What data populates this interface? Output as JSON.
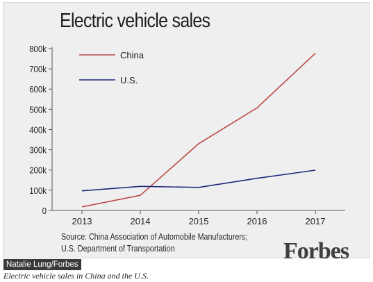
{
  "chart_data": {
    "type": "line",
    "title": "Electric vehicle sales",
    "x": [
      "2013",
      "2014",
      "2015",
      "2016",
      "2017"
    ],
    "ylim": [
      0,
      800000
    ],
    "yticks": [
      0,
      100000,
      200000,
      300000,
      400000,
      500000,
      600000,
      700000,
      800000
    ],
    "ytick_labels": [
      "0",
      "100k",
      "200k",
      "300k",
      "400k",
      "500k",
      "600k",
      "700k",
      "800k"
    ],
    "grid": false,
    "legend_position": "top-left",
    "series": [
      {
        "name": "China",
        "color": "#b94a48",
        "values": [
          18000,
          75000,
          330000,
          507000,
          777000
        ]
      },
      {
        "name": "U.S.",
        "color": "#1f2a7a",
        "values": [
          97000,
          119000,
          114000,
          159000,
          199000
        ]
      }
    ],
    "source_lines": [
      "Source: China Association of Automobile Manufacturers;",
      "U.S. Department of Transportation"
    ]
  },
  "brand": "Forbes",
  "credit": "Natalie Lung/Forbes",
  "caption": "Electric vehicle sales in China and the U.S."
}
